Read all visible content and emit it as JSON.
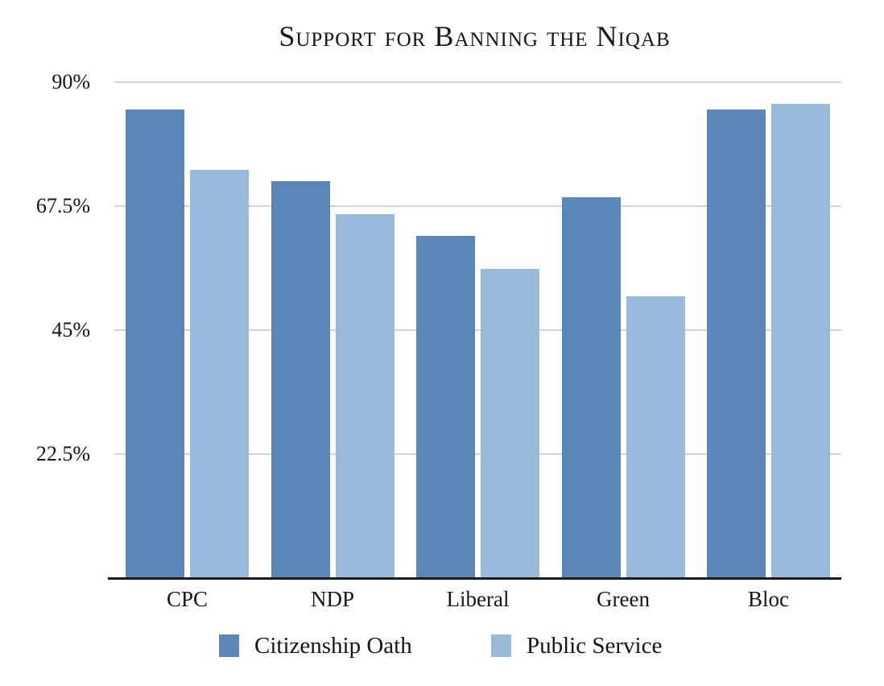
{
  "chart_data": {
    "type": "bar",
    "title": "Support for Banning the Niqab",
    "categories": [
      "CPC",
      "NDP",
      "Liberal",
      "Green",
      "Bloc"
    ],
    "series": [
      {
        "name": "Citizenship Oath",
        "color": "#5b87b8",
        "values": [
          85,
          72,
          62,
          69,
          85
        ]
      },
      {
        "name": "Public Service",
        "color": "#9abadb",
        "values": [
          74,
          66,
          56,
          51,
          86
        ]
      }
    ],
    "yticks": [
      {
        "value": 90,
        "label": "90%"
      },
      {
        "value": 67.5,
        "label": "67.5%"
      },
      {
        "value": 45,
        "label": "45%"
      },
      {
        "value": 22.5,
        "label": "22.5%"
      }
    ],
    "ylim": [
      0,
      93
    ],
    "xlabel": "",
    "ylabel": "",
    "grid": true,
    "legend_position": "bottom"
  },
  "colors": {
    "gridline": "#d2d2d2",
    "axis_line": "#1b1b1b",
    "text": "#161616",
    "background": "#ffffff"
  }
}
